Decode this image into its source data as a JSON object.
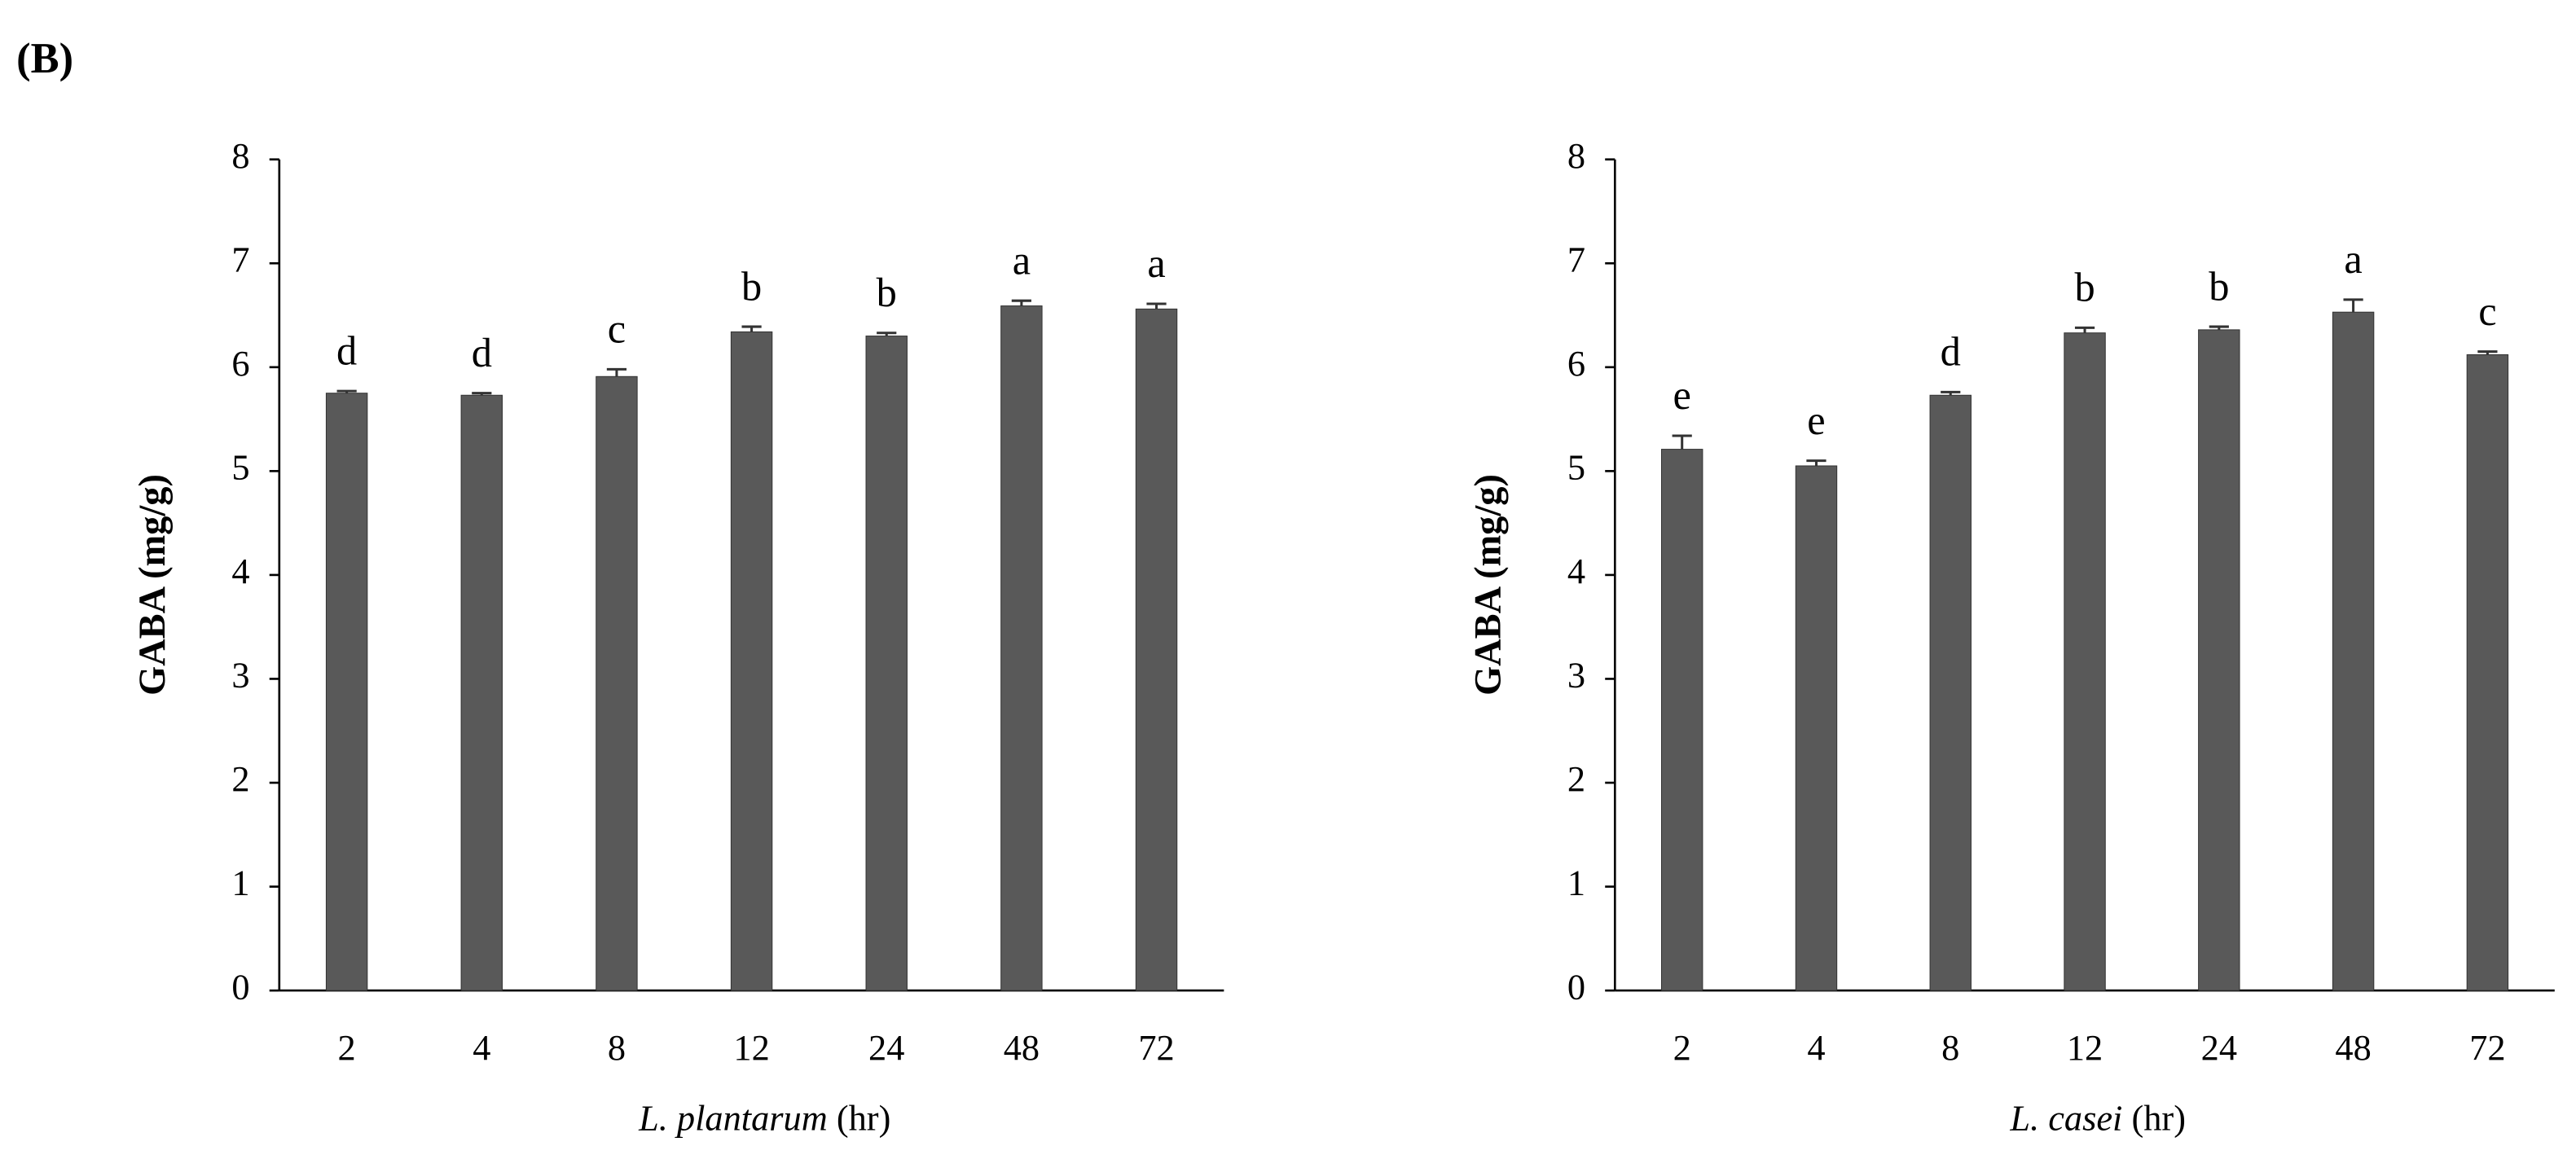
{
  "panel_label": "(B)",
  "chart_data": [
    {
      "type": "bar",
      "y_label": "GABA (mg/g)",
      "x_label": "L. plantarum",
      "x_unit": "(hr)",
      "categories": [
        "2",
        "4",
        "8",
        "12",
        "24",
        "48",
        "72"
      ],
      "values": [
        5.75,
        5.73,
        5.91,
        6.34,
        6.3,
        6.59,
        6.56
      ],
      "errors": [
        0.02,
        0.02,
        0.07,
        0.05,
        0.03,
        0.05,
        0.05
      ],
      "annotations": [
        "d",
        "d",
        "c",
        "b",
        "b",
        "a",
        "a"
      ],
      "color": "#595959",
      "ylim": [
        0,
        8
      ],
      "yticks": [
        0,
        1,
        2,
        3,
        4,
        5,
        6,
        7,
        8
      ],
      "grid": false
    },
    {
      "type": "bar",
      "y_label": "GABA (mg/g)",
      "x_label": "L. casei",
      "x_unit": "(hr)",
      "categories": [
        "2",
        "4",
        "8",
        "12",
        "24",
        "48",
        "72"
      ],
      "values": [
        5.21,
        5.05,
        5.73,
        6.33,
        6.36,
        6.53,
        6.12
      ],
      "errors": [
        0.13,
        0.05,
        0.03,
        0.05,
        0.03,
        0.12,
        0.03
      ],
      "annotations": [
        "e",
        "e",
        "d",
        "b",
        "b",
        "a",
        "c"
      ],
      "color": "#595959",
      "ylim": [
        0,
        8
      ],
      "yticks": [
        0,
        1,
        2,
        3,
        4,
        5,
        6,
        7,
        8
      ],
      "grid": false
    }
  ]
}
